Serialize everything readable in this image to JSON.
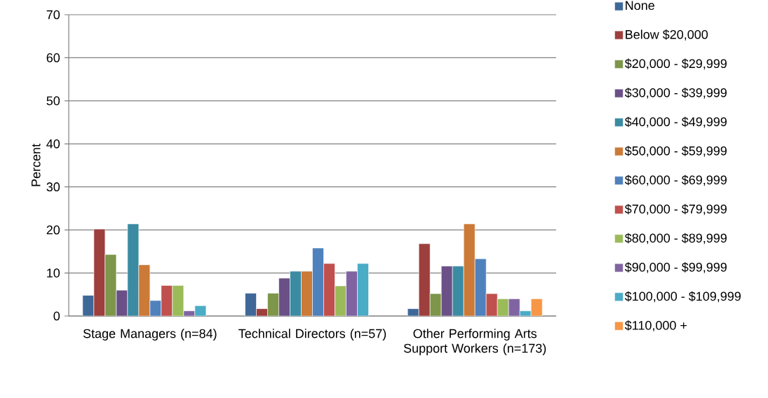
{
  "chart_data": {
    "type": "bar",
    "ylabel": "Percent",
    "categories": [
      "Stage Managers (n=84)",
      "Technical Directors (n=57)",
      "Other Performing Arts Support Workers (n=173)"
    ],
    "ylim": [
      0,
      70
    ],
    "yticks": [
      0,
      10,
      20,
      30,
      40,
      50,
      60,
      70
    ],
    "grid": "y",
    "legend": "right",
    "series": [
      {
        "name": "None",
        "color": "#3f6898",
        "values": [
          4.8,
          5.3,
          1.7
        ]
      },
      {
        "name": "Below $20,000",
        "color": "#9c3f3d",
        "values": [
          20.2,
          1.7,
          16.8
        ]
      },
      {
        "name": "$20,000 - $29,999",
        "color": "#7d9649",
        "values": [
          14.3,
          5.3,
          5.2
        ]
      },
      {
        "name": "$30,000 - $39,999",
        "color": "#6a5087",
        "values": [
          6.0,
          8.8,
          11.6
        ]
      },
      {
        "name": "$40,000 - $49,999",
        "color": "#3b8ba2",
        "values": [
          21.4,
          10.4,
          11.6
        ]
      },
      {
        "name": "$50,000 - $59,999",
        "color": "#cc7a37",
        "values": [
          11.9,
          10.4,
          21.4
        ]
      },
      {
        "name": "$60,000 - $69,999",
        "color": "#4f81bd",
        "values": [
          3.6,
          15.8,
          13.3
        ]
      },
      {
        "name": "$70,000 - $79,999",
        "color": "#c0504d",
        "values": [
          7.1,
          12.2,
          5.2
        ]
      },
      {
        "name": "$80,000 - $89,999",
        "color": "#9bbb59",
        "values": [
          7.1,
          7.0,
          4.0
        ]
      },
      {
        "name": "$90,000 - $99,999",
        "color": "#8064a2",
        "values": [
          1.2,
          10.4,
          4.0
        ]
      },
      {
        "name": "$100,000 - $109,999",
        "color": "#4bacc6",
        "values": [
          2.4,
          12.2,
          1.2
        ]
      },
      {
        "name": "$110,000 +",
        "color": "#f79646",
        "values": [
          null,
          null,
          4.0
        ]
      }
    ]
  }
}
